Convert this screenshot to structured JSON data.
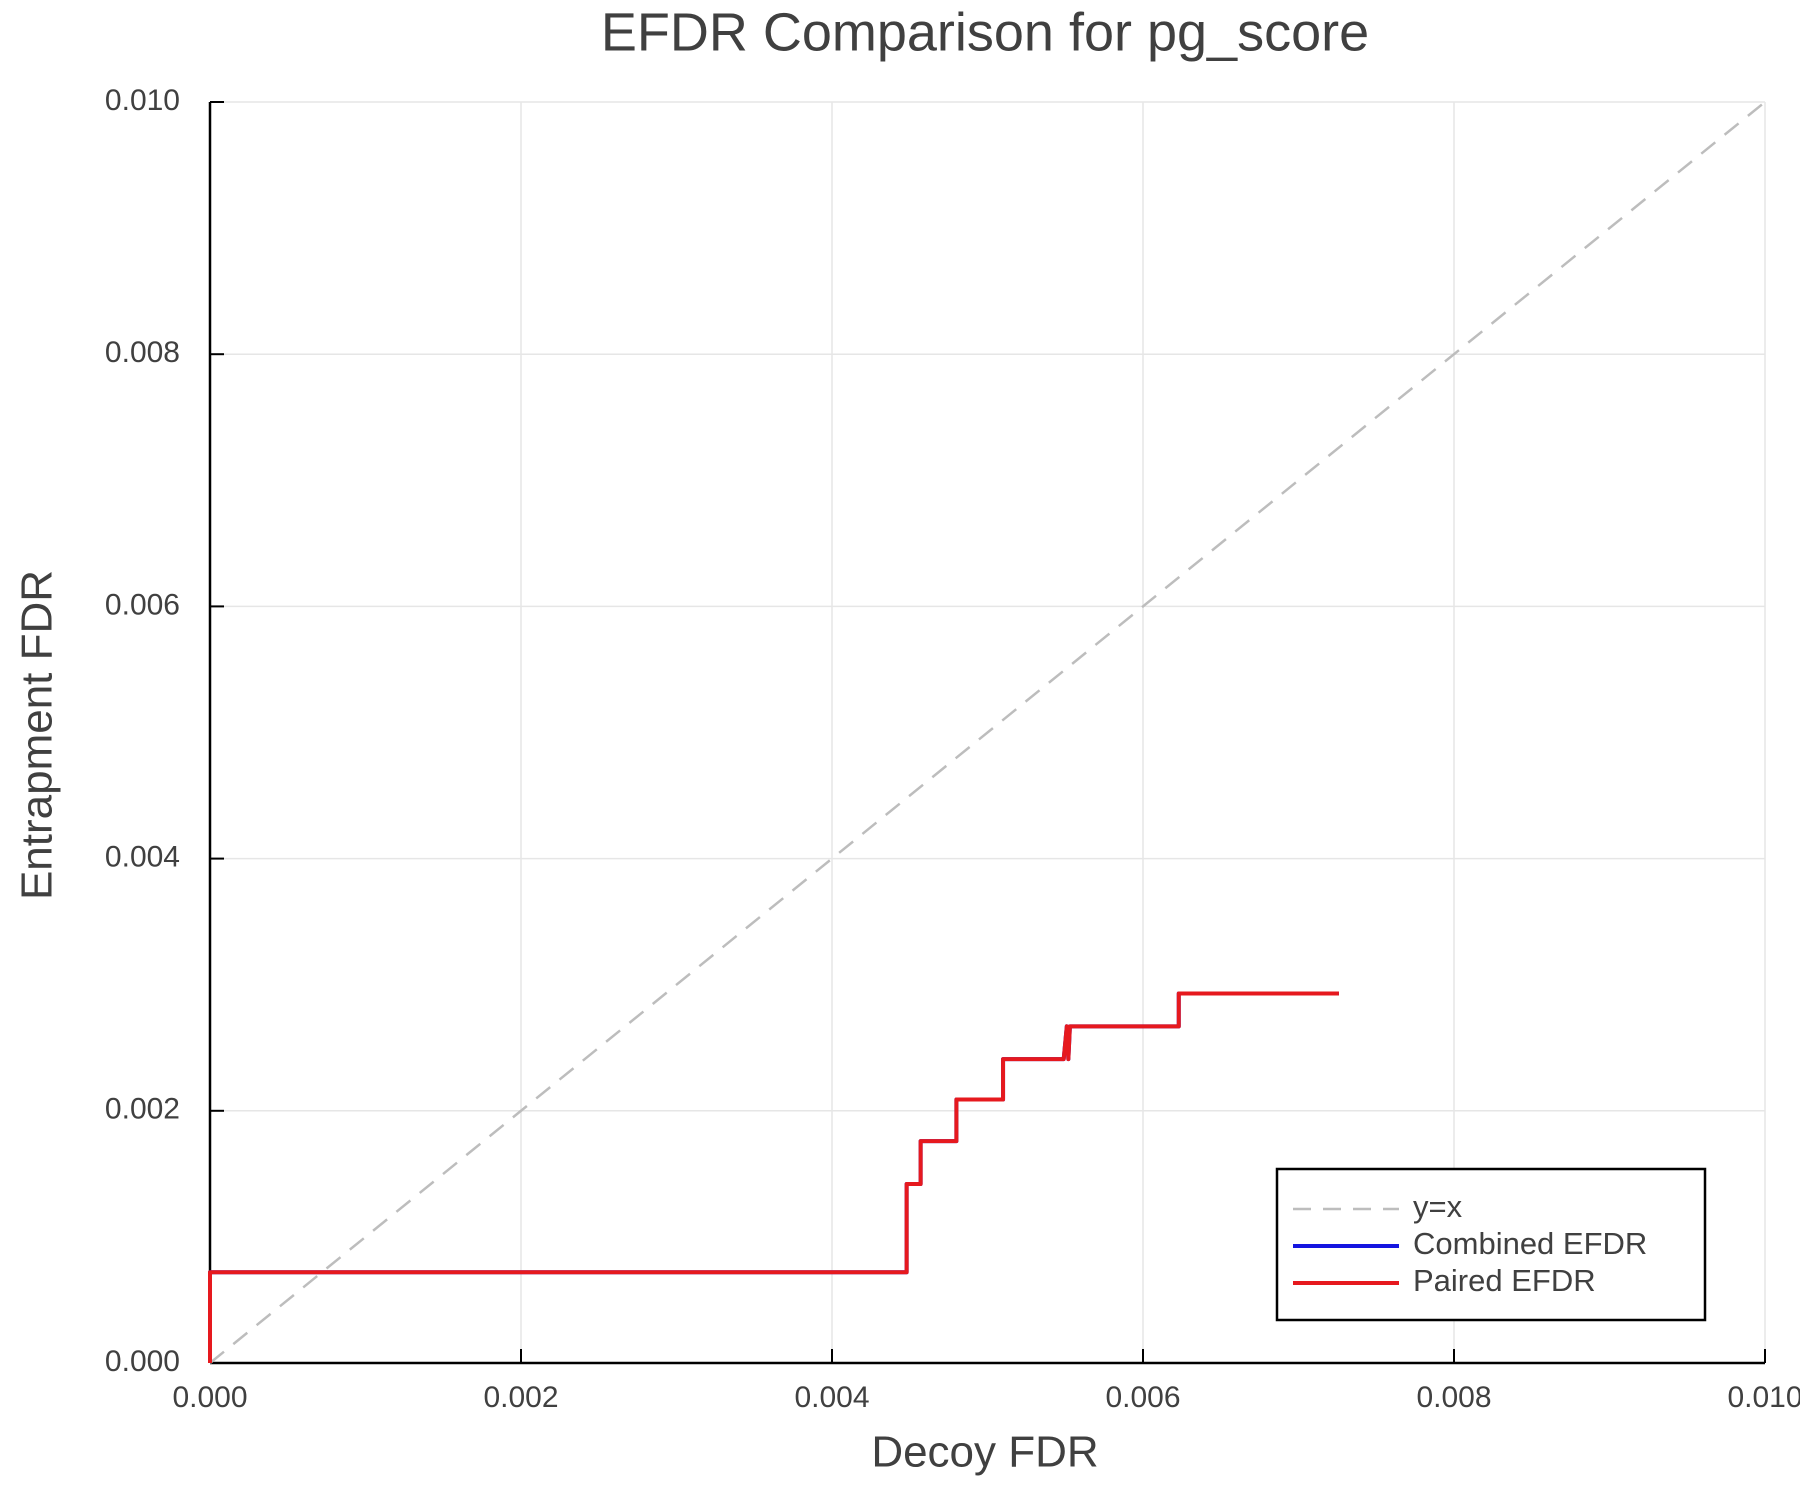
{
  "chart_data": {
    "type": "line",
    "title": "EFDR Comparison for pg_score",
    "xlabel": "Decoy FDR",
    "ylabel": "Entrapment FDR",
    "xlim": [
      0,
      0.01
    ],
    "ylim": [
      0,
      0.01
    ],
    "xticks": [
      {
        "value": 0,
        "label": "0.000"
      },
      0.002,
      0.004,
      0.006,
      0.008,
      {
        "value": 0.01,
        "label": "0.010"
      }
    ],
    "yticks": [
      {
        "value": 0,
        "label": "0.000"
      },
      0.002,
      0.004,
      0.006,
      0.008,
      {
        "value": 0.01,
        "label": "0.010"
      }
    ],
    "grid": true,
    "legend": "lower right",
    "series": [
      {
        "name": "y=x",
        "color": "#bdbdbd",
        "dashed": true,
        "x": [
          0,
          0.01
        ],
        "values": [
          0,
          0.01
        ]
      },
      {
        "name": "Combined EFDR",
        "color": "#1515e0",
        "x": [
          0,
          0,
          0.00448,
          0.00448,
          0.00457,
          0.00457,
          0.0048,
          0.0048,
          0.0051,
          0.0051,
          0.00549,
          0.00551,
          0.00552,
          0.00553,
          0.00623,
          0.00623,
          0.00726
        ],
        "values": [
          0,
          0.00072,
          0.00072,
          0.00142,
          0.00142,
          0.00176,
          0.00176,
          0.00209,
          0.00209,
          0.00241,
          0.00241,
          0.00267,
          0.00241,
          0.00267,
          0.00267,
          0.00293,
          0.00293
        ]
      },
      {
        "name": "Paired EFDR",
        "color": "#e6191e",
        "x": [
          0,
          0,
          0.00448,
          0.00448,
          0.00457,
          0.00457,
          0.0048,
          0.0048,
          0.0051,
          0.0051,
          0.00549,
          0.00551,
          0.00552,
          0.00553,
          0.00623,
          0.00623,
          0.00726
        ],
        "values": [
          0,
          0.00072,
          0.00072,
          0.00142,
          0.00142,
          0.00176,
          0.00176,
          0.00209,
          0.00209,
          0.00241,
          0.00241,
          0.00267,
          0.00241,
          0.00267,
          0.00267,
          0.00293,
          0.00293
        ]
      }
    ]
  }
}
